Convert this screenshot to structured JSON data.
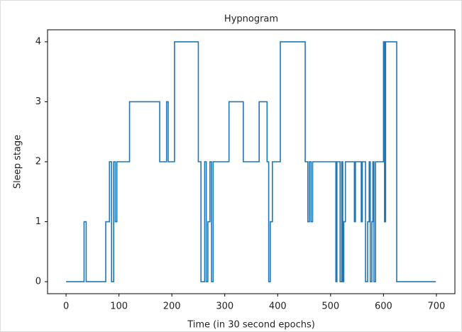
{
  "chart_data": {
    "type": "line",
    "drawstyle": "steps-post",
    "title": "Hypnogram",
    "x_label": "Time (in 30 second epochs)",
    "y_label": "Sleep stage",
    "x": [
      0,
      34,
      38,
      75,
      82,
      86,
      90,
      93,
      96,
      120,
      177,
      190,
      193,
      205,
      250,
      255,
      262,
      265,
      268,
      272,
      275,
      278,
      308,
      335,
      365,
      380,
      383,
      386,
      390,
      405,
      452,
      457,
      460,
      463,
      466,
      510,
      512,
      518,
      521,
      523,
      525,
      528,
      545,
      547,
      558,
      560,
      566,
      570,
      573,
      575,
      578,
      580,
      582,
      585,
      600,
      602,
      604,
      625,
      699
    ],
    "series": [
      {
        "color": "#1f77b4",
        "values": [
          0,
          1,
          0,
          1,
          2,
          0,
          2,
          1,
          2,
          3,
          2,
          3,
          2,
          4,
          2,
          0,
          2,
          0,
          1,
          2,
          0,
          2,
          3,
          2,
          3,
          2,
          0,
          1,
          2,
          4,
          2,
          1,
          2,
          1,
          2,
          0,
          2,
          0,
          2,
          0,
          1,
          2,
          1,
          2,
          1,
          2,
          0,
          1,
          2,
          0,
          1,
          2,
          0,
          2,
          4,
          1,
          4,
          0,
          0
        ]
      }
    ],
    "xlim": [
      -35,
      735
    ],
    "ylim": [
      -0.2,
      4.2
    ],
    "xticks": [
      0,
      100,
      200,
      300,
      400,
      500,
      600,
      700
    ],
    "yticks": [
      0,
      1,
      2,
      3,
      4
    ]
  }
}
